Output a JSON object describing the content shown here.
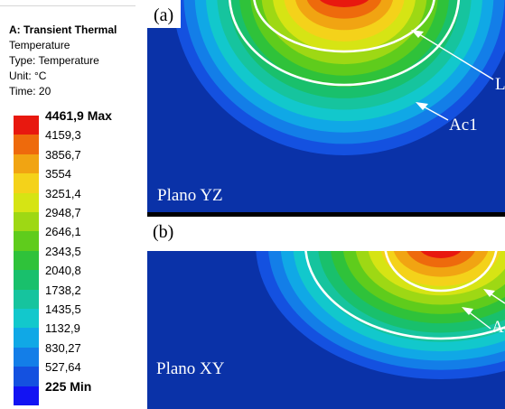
{
  "legend": {
    "title": "A: Transient Thermal",
    "result": "Temperature",
    "type": "Type: Temperature",
    "unit": "Unit: °C",
    "time": "Time: 20",
    "levels": [
      {
        "label": "4461,9 Max",
        "color": "#e8180f",
        "bold": true
      },
      {
        "label": "4159,3",
        "color": "#ee6a0c",
        "bold": false
      },
      {
        "label": "3856,7",
        "color": "#f1a412",
        "bold": false
      },
      {
        "label": "3554",
        "color": "#f4d21a",
        "bold": false
      },
      {
        "label": "3251,4",
        "color": "#d6e414",
        "bold": false
      },
      {
        "label": "2948,7",
        "color": "#9ed814",
        "bold": false
      },
      {
        "label": "2646,1",
        "color": "#5fcc1c",
        "bold": false
      },
      {
        "label": "2343,5",
        "color": "#2fc23a",
        "bold": false
      },
      {
        "label": "2040,8",
        "color": "#19c06c",
        "bold": false
      },
      {
        "label": "1738,2",
        "color": "#16c49e",
        "bold": false
      },
      {
        "label": "1435,5",
        "color": "#12c8cc",
        "bold": false
      },
      {
        "label": "1132,9",
        "color": "#10a8e6",
        "bold": false
      },
      {
        "label": "830,27",
        "color": "#137ee8",
        "bold": false
      },
      {
        "label": "527,64",
        "color": "#1451e0",
        "bold": false
      },
      {
        "label": "225 Min",
        "color": "#1213f3",
        "bold": true
      }
    ]
  },
  "panels": {
    "a": {
      "tag": "(a)",
      "plane": "Plano YZ",
      "contour_labels": [
        "L",
        "Ac1"
      ]
    },
    "b": {
      "tag": "(b)",
      "plane": "Plano XY",
      "contour_labels": [
        "Ac"
      ]
    }
  },
  "colors": {
    "background": "#0a32a8",
    "contour_line": "#ffffff"
  }
}
